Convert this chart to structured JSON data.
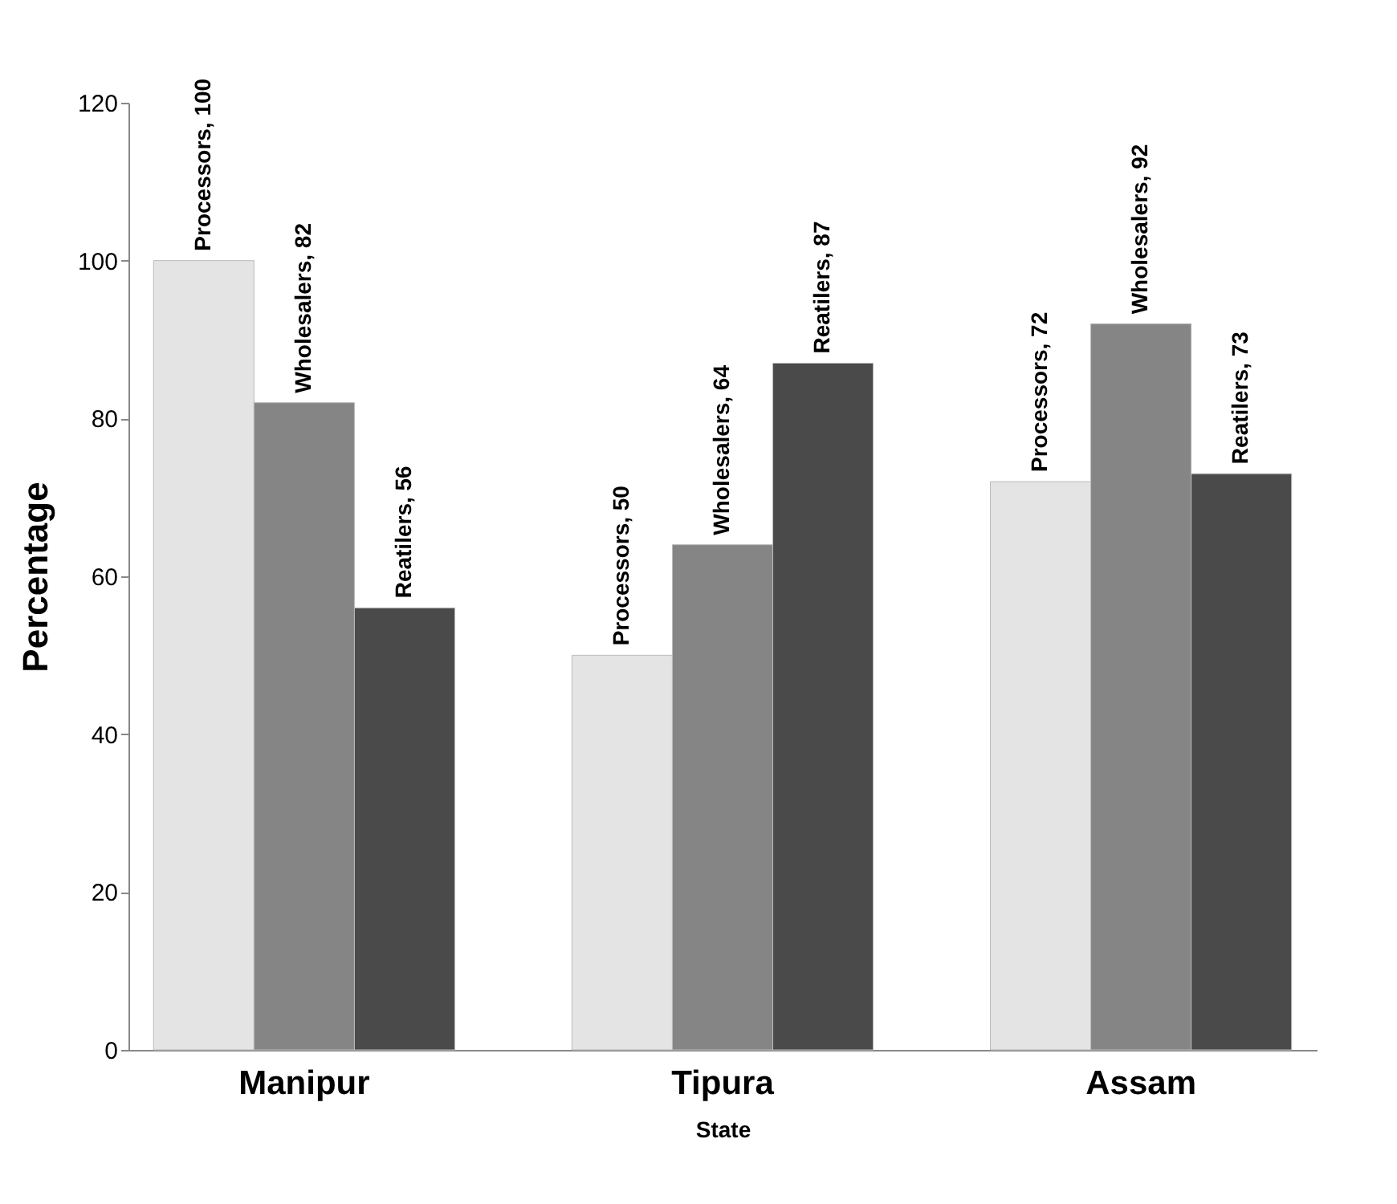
{
  "chart_data": {
    "type": "bar",
    "xlabel": "State",
    "ylabel": "Percentage",
    "categories": [
      "Manipur",
      "Tipura",
      "Assam"
    ],
    "series": [
      {
        "color": "#e4e4e4",
        "values": [
          100,
          50,
          72
        ],
        "value_labels": [
          "Processors, 100",
          "Processors, 50",
          "Processors, 72"
        ]
      },
      {
        "color": "#858585",
        "values": [
          82,
          64,
          92
        ],
        "value_labels": [
          "Wholesalers, 82",
          "Wholesalers, 64",
          "Wholesalers, 92"
        ]
      },
      {
        "color": "#4a4a4a",
        "values": [
          56,
          87,
          73
        ],
        "value_labels": [
          "Reatilers, 56",
          "Reatilers, 87",
          "Reatilers, 73"
        ]
      }
    ],
    "ylim": [
      0,
      120
    ],
    "yticks": [
      0,
      20,
      40,
      60,
      80,
      100,
      120
    ],
    "grid": false,
    "legend": false
  }
}
